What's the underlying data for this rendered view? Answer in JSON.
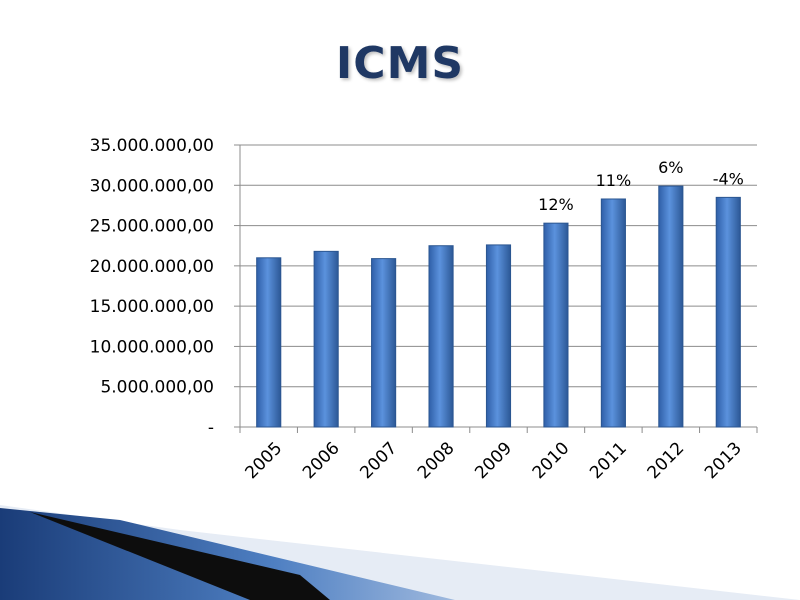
{
  "slide": {
    "title": "ICMS"
  },
  "chart_data": {
    "type": "bar",
    "title": "",
    "xlabel": "",
    "ylabel": "",
    "categories": [
      "2005",
      "2006",
      "2007",
      "2008",
      "2009",
      "2010",
      "2011",
      "2012",
      "2013"
    ],
    "values": [
      21000000,
      21800000,
      20900000,
      22500000,
      22600000,
      25300000,
      28300000,
      29900000,
      28500000
    ],
    "data_labels": [
      "",
      "",
      "",
      "",
      "",
      "12%",
      "11%",
      "6%",
      "-4%"
    ],
    "ylim": [
      0,
      35000000
    ],
    "yticks": [
      0,
      5000000,
      10000000,
      15000000,
      20000000,
      25000000,
      30000000,
      35000000
    ],
    "ytick_labels": [
      "-",
      "5.000.000,00",
      "10.000.000,00",
      "15.000.000,00",
      "20.000.000,00",
      "25.000.000,00",
      "30.000.000,00",
      "35.000.000,00"
    ],
    "grid": true,
    "legend": "none",
    "bar_color": "#4a7fc9",
    "bar_edge_color": "#2b5691"
  },
  "colors": {
    "title": "#1f3864",
    "grid": "#8c8c8c",
    "accent_dark": "#1a3c78",
    "accent_light": "#dbe4f0"
  }
}
